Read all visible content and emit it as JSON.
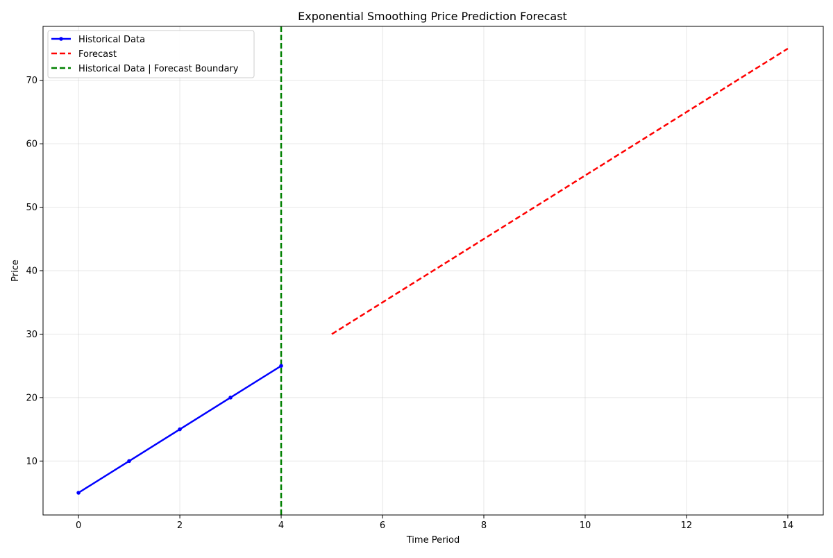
{
  "chart_data": {
    "type": "line",
    "title": "Exponential Smoothing Price Prediction Forecast",
    "xlabel": "Time Period",
    "ylabel": "Price",
    "xlim": [
      -0.7,
      14.7
    ],
    "ylim": [
      1.5,
      78.5
    ],
    "xticks": [
      0,
      2,
      4,
      6,
      8,
      10,
      12,
      14
    ],
    "yticks": [
      10,
      20,
      30,
      40,
      50,
      60,
      70
    ],
    "grid": true,
    "legend_position": "upper-left",
    "series": [
      {
        "name": "Historical Data",
        "color": "#0000ff",
        "style": "solid",
        "marker": "dot",
        "x": [
          0,
          1,
          2,
          3,
          4
        ],
        "y": [
          5,
          10,
          15,
          20,
          25
        ]
      },
      {
        "name": "Forecast",
        "color": "#ff0000",
        "style": "dashed",
        "marker": "none",
        "x": [
          5,
          14
        ],
        "y": [
          30,
          75
        ]
      }
    ],
    "boundary": {
      "name": "Historical Data | Forecast Boundary",
      "color": "#008000",
      "style": "dashed",
      "x": 4
    }
  }
}
